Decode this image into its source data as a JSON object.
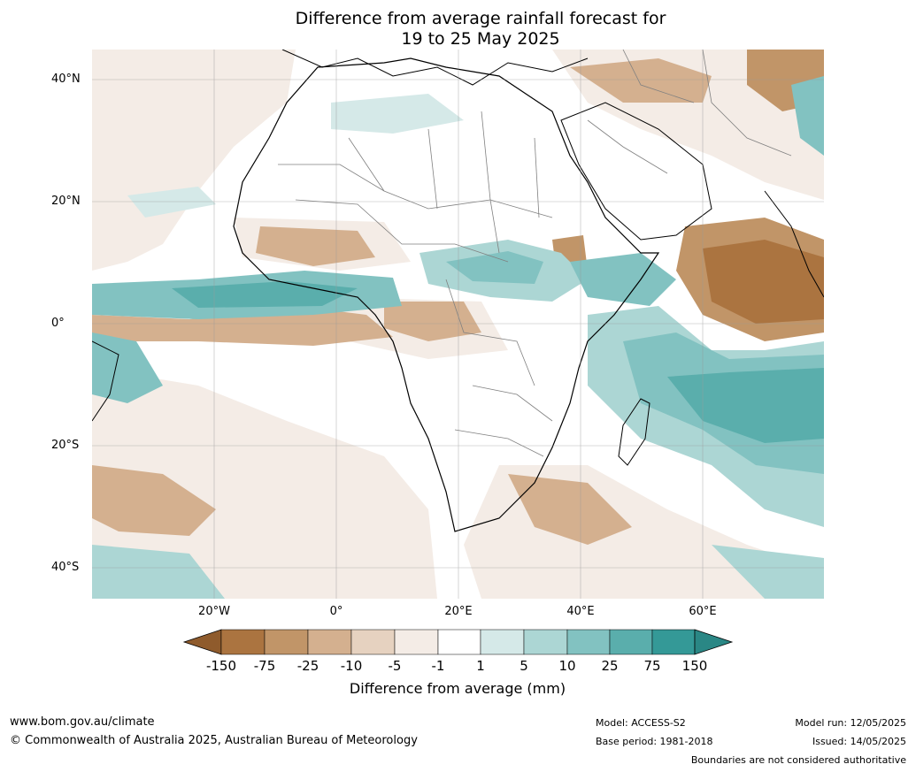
{
  "title": {
    "line1": "Difference from average rainfall forecast for",
    "line2": "19 to 25 May 2025"
  },
  "map": {
    "latitude_labels": [
      "40°N",
      "20°N",
      "0°",
      "20°S",
      "40°S"
    ],
    "longitude_labels": [
      "20°W",
      "0°",
      "20°E",
      "40°E",
      "60°E"
    ],
    "extent": {
      "lon_min": -40,
      "lon_max": 80,
      "lat_min": -45,
      "lat_max": 45
    }
  },
  "colorbar": {
    "label": "Difference from average (mm)",
    "ticks": [
      "-150",
      "-75",
      "-25",
      "-10",
      "-5",
      "-1",
      "1",
      "5",
      "10",
      "25",
      "75",
      "150"
    ],
    "colors": [
      "#8f5b2c",
      "#ab7440",
      "#c19568",
      "#d4b08f",
      "#e6d2c0",
      "#f4ece6",
      "#ffffff",
      "#d5e9e8",
      "#acd6d4",
      "#82c2c1",
      "#5aaeac",
      "#349997",
      "#2a8785"
    ]
  },
  "footer": {
    "website": "www.bom.gov.au/climate",
    "copyright": "© Commonwealth of Australia 2025, Australian Bureau of Meteorology",
    "model": "Model: ACCESS-S2",
    "base_period": "Base period: 1981-2018",
    "model_run": "Model run: 12/05/2025",
    "issued": "Issued: 14/05/2025",
    "disclaimer": "Boundaries are not considered authoritative"
  }
}
